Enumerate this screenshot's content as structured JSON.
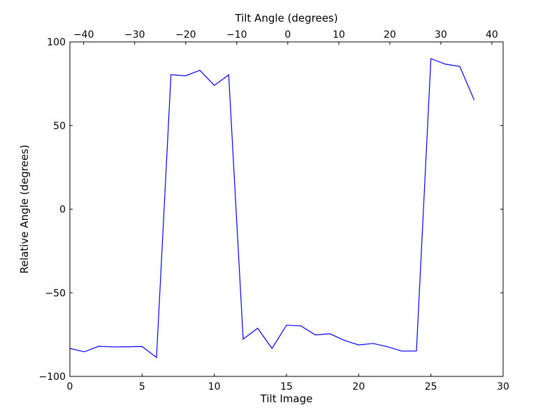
{
  "chart_data": {
    "type": "line",
    "title": "",
    "xlabel": "Tilt Image",
    "ylabel": "Relative Angle (degrees)",
    "x2label": "Tilt Angle (degrees)",
    "xlim": [
      0,
      30
    ],
    "ylim": [
      -100,
      100
    ],
    "x2lim": [
      -42.7,
      42.2
    ],
    "xticks": [
      0,
      5,
      10,
      15,
      20,
      25,
      30
    ],
    "yticks": [
      -100,
      -50,
      0,
      50,
      100
    ],
    "x2ticks": [
      -40,
      -30,
      -20,
      -10,
      0,
      10,
      20,
      30,
      40
    ],
    "xtick_labels": [
      "0",
      "5",
      "10",
      "15",
      "20",
      "25",
      "30"
    ],
    "ytick_labels": [
      "−100",
      "−50",
      "0",
      "50",
      "100"
    ],
    "x2tick_labels": [
      "−40",
      "−30",
      "−20",
      "−10",
      "0",
      "10",
      "20",
      "30",
      "40"
    ],
    "grid": false,
    "series": [
      {
        "color": "#0000ff",
        "x": [
          0,
          1,
          2,
          3,
          4,
          5,
          6,
          7,
          8,
          9,
          10,
          11,
          12,
          13,
          14,
          15,
          16,
          17,
          18,
          19,
          20,
          21,
          22,
          23,
          24,
          25,
          26,
          27,
          28
        ],
        "values": [
          -83.3,
          -85.3,
          -82.0,
          -82.4,
          -82.3,
          -82.1,
          -88.7,
          80.4,
          79.7,
          83.0,
          74.0,
          80.3,
          -77.7,
          -71.2,
          -83.3,
          -69.4,
          -69.8,
          -75.2,
          -74.5,
          -78.4,
          -81.2,
          -80.3,
          -82.3,
          -84.9,
          -84.8,
          90.0,
          86.7,
          85.3,
          65.2
        ]
      }
    ]
  }
}
